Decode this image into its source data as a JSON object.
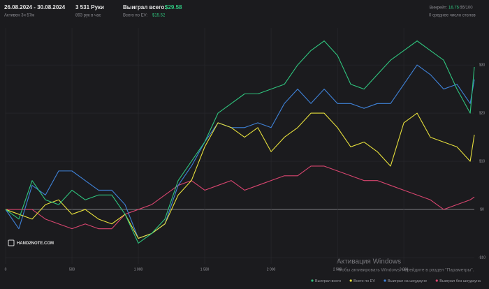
{
  "header": {
    "date_range": "26.08.2024 - 30.08.2024",
    "active": "Активен 3ч 57м",
    "hands": "3 531 Руки",
    "hands_per_hour": "893 рук в час",
    "won_label": "Выиграл всего:",
    "won_value": "$29.58",
    "ev_label": "Всего по EV:",
    "ev_value": "$15.52",
    "winrate_label": "Винрейт:",
    "winrate_value": "16.75",
    "winrate_unit": "бб/100",
    "tables": "0 среднее число столов"
  },
  "logo": "HAND2NOTE.COM",
  "watermark": {
    "title": "Активация Windows",
    "text": "Чтобы активировать Windows, перейдите в раздел \"Параметры\"."
  },
  "chart_data": {
    "type": "line",
    "x": [
      0,
      100,
      200,
      300,
      400,
      500,
      600,
      700,
      800,
      900,
      1000,
      1100,
      1200,
      1300,
      1400,
      1500,
      1600,
      1700,
      1800,
      1900,
      2000,
      2100,
      2200,
      2300,
      2400,
      2500,
      2600,
      2700,
      2800,
      2900,
      3000,
      3100,
      3200,
      3300,
      3400,
      3500,
      3531
    ],
    "series": [
      {
        "name": "Выиграл всего",
        "color": "#2fc47e",
        "values": [
          0,
          -2,
          6,
          2,
          1,
          4,
          2,
          3,
          3,
          -1,
          -7,
          -5,
          -2,
          6,
          10,
          14,
          20,
          22,
          24,
          24,
          25,
          26,
          30,
          33,
          35,
          32,
          26,
          25,
          28,
          31,
          33,
          35,
          33,
          31,
          25,
          20,
          29.58
        ]
      },
      {
        "name": "Всего по EV",
        "color": "#e6df3c",
        "values": [
          0,
          -1,
          -2,
          1,
          2,
          -1,
          0,
          -2,
          -3,
          -1,
          -6,
          -5,
          -3,
          3,
          6,
          13,
          18,
          17,
          15,
          17,
          12,
          15,
          17,
          20,
          20,
          17,
          13,
          14,
          12,
          9,
          18,
          20,
          15,
          14,
          13,
          10,
          15.52
        ]
      },
      {
        "name": "Выиграл на шоудауне",
        "color": "#3f82d8",
        "values": [
          0,
          -4,
          5,
          3,
          8,
          8,
          6,
          4,
          4,
          1,
          -6,
          -5,
          -3,
          5,
          9,
          14,
          18,
          17,
          17,
          18,
          17,
          22,
          25,
          22,
          25,
          22,
          22,
          21,
          22,
          22,
          26,
          30,
          28,
          25,
          26,
          22,
          27
        ]
      },
      {
        "name": "Выиграл без шоудауна",
        "color": "#d8456f",
        "values": [
          0,
          0,
          0,
          -2,
          -3,
          -4,
          -3,
          -4,
          -4,
          -1,
          0,
          1,
          3,
          5,
          6,
          4,
          5,
          6,
          4,
          5,
          6,
          7,
          7,
          9,
          9,
          8,
          7,
          6,
          6,
          5,
          4,
          3,
          2,
          0,
          1,
          2,
          2.58
        ]
      }
    ],
    "xlim": [
      0,
      3531
    ],
    "xticks": [
      0,
      500,
      {
        "value": 1000,
        "label": "1 000"
      },
      {
        "value": 1500,
        "label": "1 500"
      },
      {
        "value": 2000,
        "label": "2 000"
      },
      {
        "value": 2500,
        "label": "2 500"
      },
      {
        "value": 3000,
        "label": "3 000"
      }
    ],
    "ylim": [
      -11.3,
      37.7
    ],
    "yticks": [
      {
        "value": -10,
        "label": "-$10"
      },
      {
        "value": 0,
        "label": "$0"
      },
      {
        "value": 10,
        "label": "$10"
      },
      {
        "value": 20,
        "label": "$20"
      },
      {
        "value": 30,
        "label": "$30"
      }
    ],
    "grid": true
  }
}
